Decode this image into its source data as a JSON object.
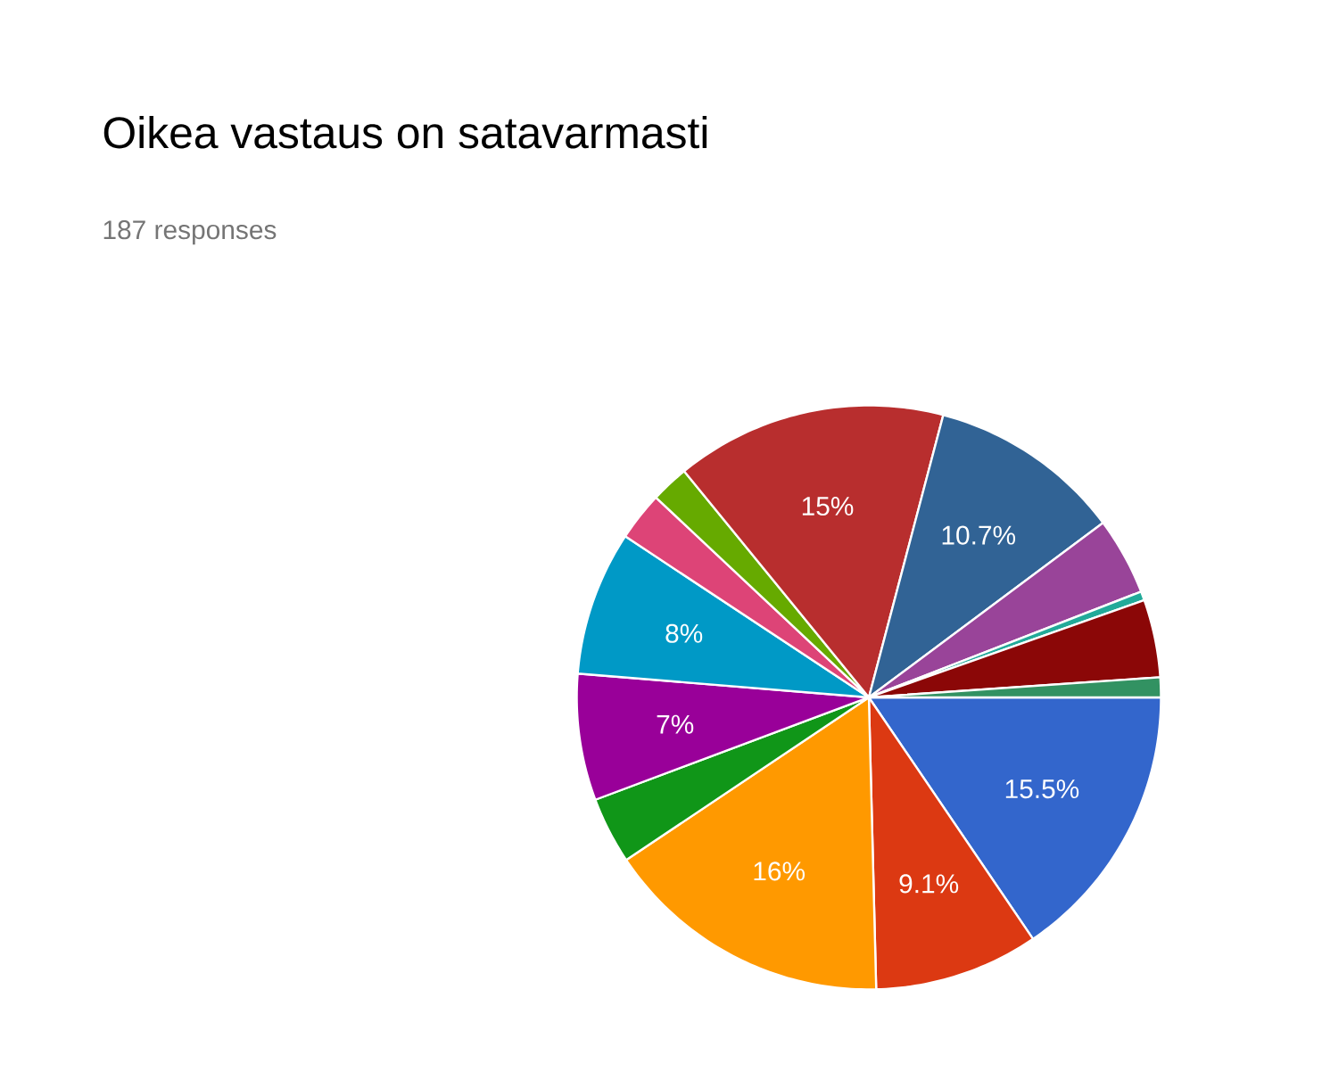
{
  "chart_data": {
    "type": "pie",
    "title": "Oikea vastaus on satavarmasti",
    "subtitle": "187 responses",
    "categories": [
      null,
      null,
      null,
      null,
      null,
      null,
      null,
      null,
      null,
      null,
      null,
      null,
      null,
      null
    ],
    "values": [
      15.5,
      9.1,
      16,
      3.7,
      7,
      8,
      2.7,
      2.1,
      15,
      10.7,
      4.3,
      0.5,
      4.3,
      1.1
    ],
    "colors": [
      "#3366cc",
      "#dc3912",
      "#ff9900",
      "#109618",
      "#990099",
      "#0099c6",
      "#dd4477",
      "#66aa00",
      "#b82e2e",
      "#316395",
      "#994499",
      "#22aa99",
      "#8b0707",
      "#329262"
    ],
    "value_labels": [
      "15.5%",
      "9.1%",
      "16%",
      null,
      "7%",
      "8%",
      null,
      null,
      "15%",
      "10.7%",
      null,
      null,
      null,
      null
    ]
  }
}
